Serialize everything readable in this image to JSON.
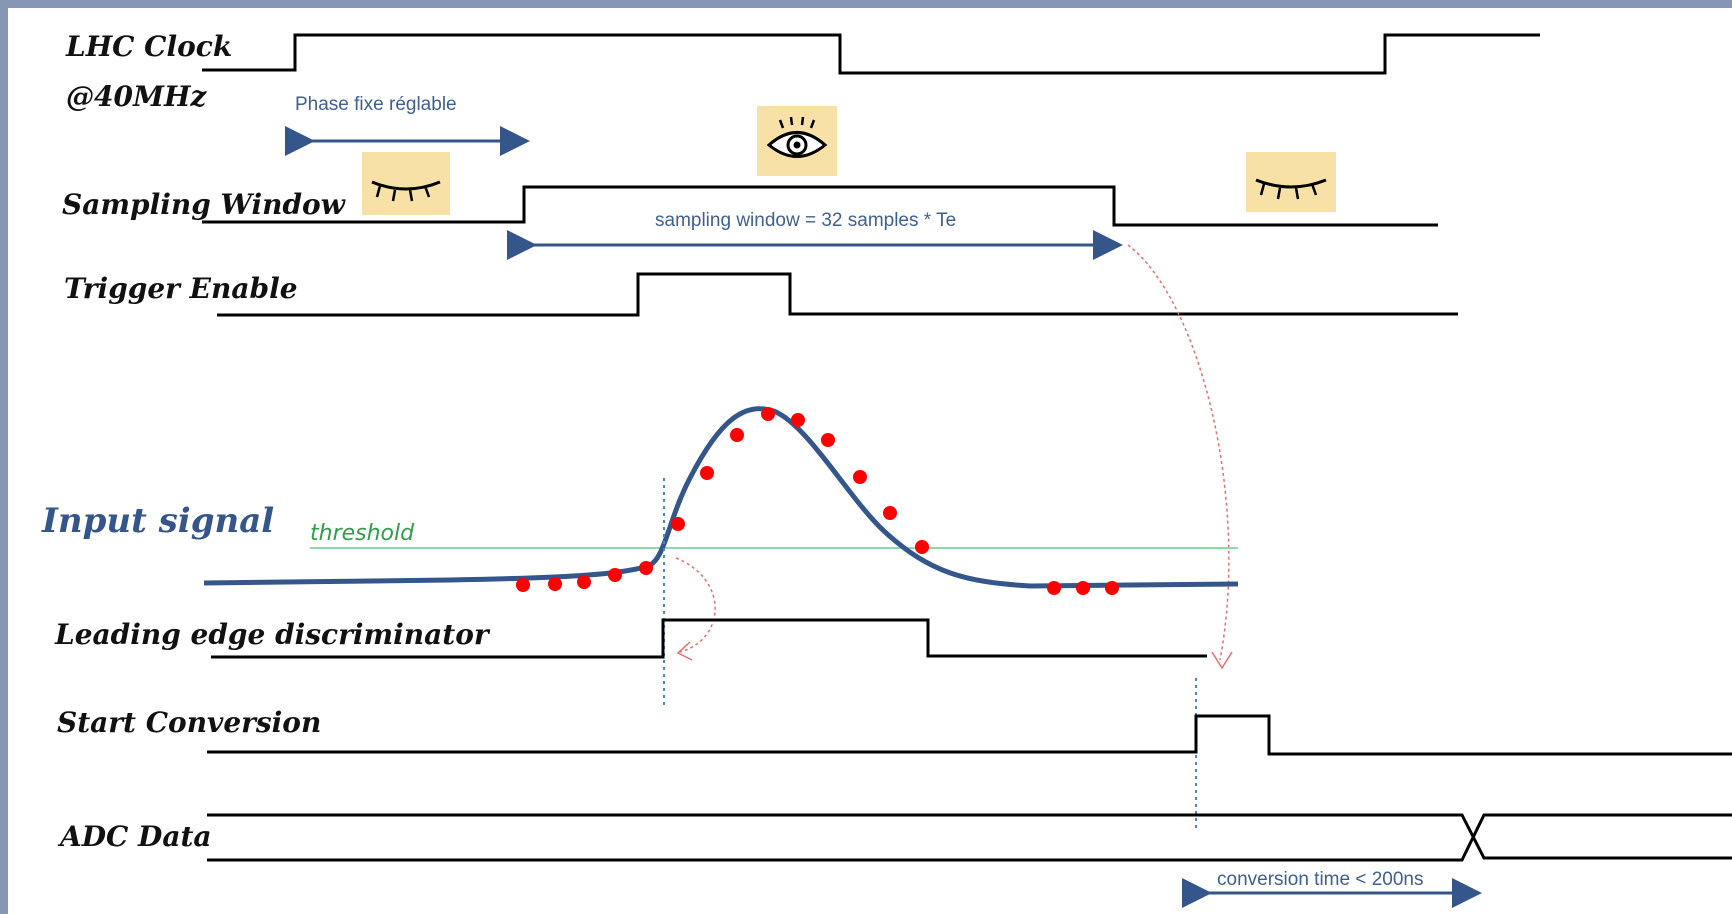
{
  "signals": {
    "lhc_clock": "LHC Clock",
    "clock_freq": "@40MHz",
    "sampling_window": "Sampling Window",
    "trigger_enable": "Trigger Enable",
    "input_signal": "Input signal",
    "leading_edge": "Leading edge discriminator",
    "start_conversion": "Start Conversion",
    "adc_data": "ADC Data"
  },
  "annotations": {
    "phase": "Phase fixe réglable",
    "sampling_window_length": "sampling window = 32 samples * Te",
    "threshold": "threshold",
    "conversion_time": "conversion time < 200ns"
  },
  "colors": {
    "signal": "#34568b",
    "samples": "#ff0000",
    "threshold": "#8fd9a8",
    "eye_bg": "#f7e1a6",
    "frame": "#8796b5"
  },
  "icons": [
    "eye-closed-icon",
    "eye-open-icon",
    "eye-closed-icon"
  ]
}
